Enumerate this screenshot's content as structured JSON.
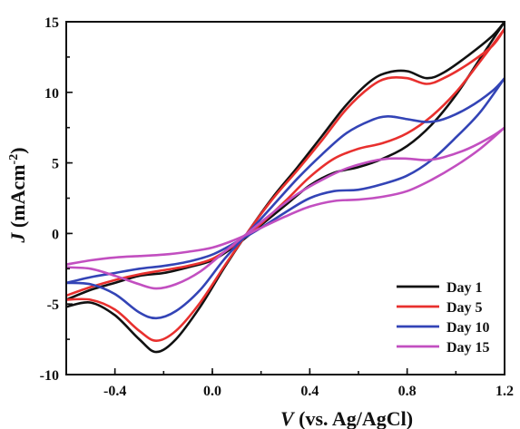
{
  "chart_data": {
    "type": "line",
    "xlabel_prefix": "V",
    "xlabel_rest": " (vs. Ag/AgCl)",
    "ylabel_prefix": "J",
    "ylabel_unit_base": " (mAcm",
    "ylabel_unit_exp": "-2",
    "ylabel_unit_close": ")",
    "xlim": [
      -0.6,
      1.2
    ],
    "ylim": [
      -10,
      15
    ],
    "x_ticks": [
      "-0.4",
      "0.0",
      "0.4",
      "0.8",
      "1.2"
    ],
    "y_ticks": [
      "-10",
      "-5",
      "0",
      "5",
      "10",
      "15"
    ],
    "legend_position": "bottom-right",
    "series": [
      {
        "name": "Day 1",
        "color": "#111111",
        "forward": [
          [
            -0.6,
            -5.2
          ],
          [
            -0.5,
            -4.9
          ],
          [
            -0.4,
            -5.8
          ],
          [
            -0.3,
            -7.5
          ],
          [
            -0.23,
            -8.4
          ],
          [
            -0.15,
            -7.5
          ],
          [
            -0.05,
            -5.2
          ],
          [
            0.05,
            -2.4
          ],
          [
            0.15,
            0.2
          ],
          [
            0.25,
            2.6
          ],
          [
            0.35,
            4.7
          ],
          [
            0.45,
            6.9
          ],
          [
            0.55,
            9.1
          ],
          [
            0.65,
            10.8
          ],
          [
            0.72,
            11.4
          ],
          [
            0.8,
            11.5
          ],
          [
            0.88,
            11.0
          ],
          [
            0.95,
            11.4
          ],
          [
            1.05,
            12.6
          ],
          [
            1.15,
            14.0
          ],
          [
            1.2,
            15.0
          ]
        ],
        "reverse": [
          [
            1.2,
            15.0
          ],
          [
            1.1,
            12.4
          ],
          [
            1.0,
            9.8
          ],
          [
            0.9,
            7.7
          ],
          [
            0.8,
            6.2
          ],
          [
            0.7,
            5.3
          ],
          [
            0.6,
            4.7
          ],
          [
            0.5,
            4.3
          ],
          [
            0.4,
            3.4
          ],
          [
            0.3,
            2.0
          ],
          [
            0.2,
            0.6
          ],
          [
            0.1,
            -0.8
          ],
          [
            0.0,
            -1.9
          ],
          [
            -0.1,
            -2.4
          ],
          [
            -0.2,
            -2.8
          ],
          [
            -0.3,
            -3.0
          ],
          [
            -0.4,
            -3.5
          ],
          [
            -0.5,
            -4.0
          ],
          [
            -0.6,
            -4.7
          ]
        ]
      },
      {
        "name": "Day 5",
        "color": "#e8302e",
        "forward": [
          [
            -0.6,
            -4.7
          ],
          [
            -0.5,
            -4.7
          ],
          [
            -0.4,
            -5.4
          ],
          [
            -0.3,
            -6.9
          ],
          [
            -0.23,
            -7.6
          ],
          [
            -0.15,
            -6.9
          ],
          [
            -0.05,
            -4.9
          ],
          [
            0.05,
            -2.3
          ],
          [
            0.15,
            0.2
          ],
          [
            0.25,
            2.5
          ],
          [
            0.35,
            4.5
          ],
          [
            0.45,
            6.6
          ],
          [
            0.55,
            8.8
          ],
          [
            0.65,
            10.4
          ],
          [
            0.72,
            11.0
          ],
          [
            0.8,
            11.0
          ],
          [
            0.88,
            10.6
          ],
          [
            0.95,
            11.0
          ],
          [
            1.05,
            12.0
          ],
          [
            1.15,
            13.3
          ],
          [
            1.2,
            14.5
          ]
        ],
        "reverse": [
          [
            1.2,
            14.5
          ],
          [
            1.1,
            12.2
          ],
          [
            1.0,
            10.0
          ],
          [
            0.9,
            8.3
          ],
          [
            0.8,
            7.1
          ],
          [
            0.7,
            6.4
          ],
          [
            0.6,
            6.0
          ],
          [
            0.5,
            5.3
          ],
          [
            0.4,
            4.0
          ],
          [
            0.3,
            2.3
          ],
          [
            0.2,
            0.7
          ],
          [
            0.1,
            -0.7
          ],
          [
            0.0,
            -1.8
          ],
          [
            -0.1,
            -2.3
          ],
          [
            -0.2,
            -2.6
          ],
          [
            -0.3,
            -2.9
          ],
          [
            -0.4,
            -3.3
          ],
          [
            -0.5,
            -3.8
          ],
          [
            -0.6,
            -4.4
          ]
        ]
      },
      {
        "name": "Day 10",
        "color": "#3344b6",
        "forward": [
          [
            -0.6,
            -3.5
          ],
          [
            -0.5,
            -3.6
          ],
          [
            -0.4,
            -4.3
          ],
          [
            -0.3,
            -5.6
          ],
          [
            -0.23,
            -6.0
          ],
          [
            -0.15,
            -5.5
          ],
          [
            -0.05,
            -4.0
          ],
          [
            0.05,
            -1.8
          ],
          [
            0.15,
            0.1
          ],
          [
            0.25,
            2.0
          ],
          [
            0.35,
            3.9
          ],
          [
            0.45,
            5.6
          ],
          [
            0.55,
            7.1
          ],
          [
            0.65,
            8.0
          ],
          [
            0.72,
            8.3
          ],
          [
            0.8,
            8.1
          ],
          [
            0.88,
            7.9
          ],
          [
            0.95,
            8.1
          ],
          [
            1.05,
            8.9
          ],
          [
            1.15,
            10.1
          ],
          [
            1.2,
            11.0
          ]
        ],
        "reverse": [
          [
            1.2,
            11.0
          ],
          [
            1.1,
            8.6
          ],
          [
            1.0,
            6.8
          ],
          [
            0.9,
            5.2
          ],
          [
            0.8,
            4.1
          ],
          [
            0.7,
            3.5
          ],
          [
            0.6,
            3.1
          ],
          [
            0.5,
            3.0
          ],
          [
            0.4,
            2.5
          ],
          [
            0.3,
            1.5
          ],
          [
            0.2,
            0.4
          ],
          [
            0.1,
            -0.6
          ],
          [
            0.0,
            -1.5
          ],
          [
            -0.1,
            -2.0
          ],
          [
            -0.2,
            -2.3
          ],
          [
            -0.3,
            -2.5
          ],
          [
            -0.4,
            -2.8
          ],
          [
            -0.5,
            -3.1
          ],
          [
            -0.6,
            -3.5
          ]
        ]
      },
      {
        "name": "Day 15",
        "color": "#c24fc0",
        "forward": [
          [
            -0.6,
            -2.4
          ],
          [
            -0.5,
            -2.5
          ],
          [
            -0.4,
            -3.0
          ],
          [
            -0.3,
            -3.6
          ],
          [
            -0.23,
            -3.9
          ],
          [
            -0.15,
            -3.6
          ],
          [
            -0.05,
            -2.7
          ],
          [
            0.05,
            -1.3
          ],
          [
            0.15,
            0.1
          ],
          [
            0.25,
            1.5
          ],
          [
            0.35,
            2.8
          ],
          [
            0.45,
            3.8
          ],
          [
            0.55,
            4.6
          ],
          [
            0.65,
            5.1
          ],
          [
            0.72,
            5.3
          ],
          [
            0.8,
            5.3
          ],
          [
            0.88,
            5.2
          ],
          [
            0.95,
            5.4
          ],
          [
            1.05,
            6.0
          ],
          [
            1.15,
            6.9
          ],
          [
            1.2,
            7.5
          ]
        ],
        "reverse": [
          [
            1.2,
            7.5
          ],
          [
            1.1,
            6.0
          ],
          [
            1.0,
            4.8
          ],
          [
            0.9,
            3.8
          ],
          [
            0.8,
            3.0
          ],
          [
            0.7,
            2.6
          ],
          [
            0.6,
            2.4
          ],
          [
            0.5,
            2.3
          ],
          [
            0.4,
            1.9
          ],
          [
            0.3,
            1.2
          ],
          [
            0.2,
            0.4
          ],
          [
            0.1,
            -0.4
          ],
          [
            0.0,
            -1.0
          ],
          [
            -0.1,
            -1.3
          ],
          [
            -0.2,
            -1.5
          ],
          [
            -0.3,
            -1.6
          ],
          [
            -0.4,
            -1.7
          ],
          [
            -0.5,
            -1.9
          ],
          [
            -0.6,
            -2.2
          ]
        ]
      }
    ]
  }
}
